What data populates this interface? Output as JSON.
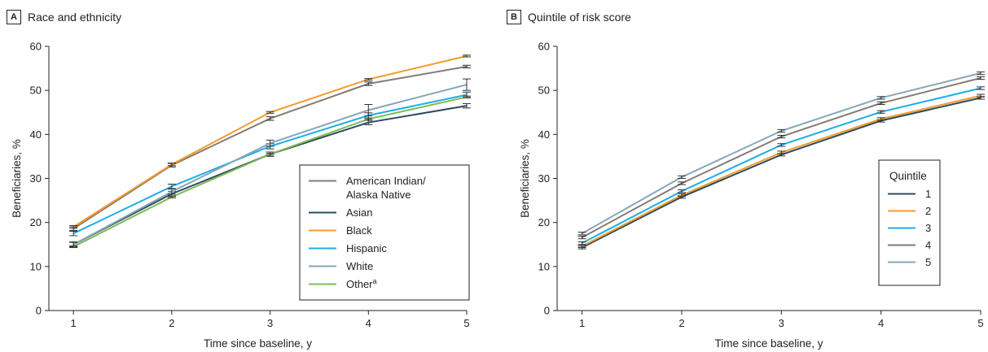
{
  "chart_data": [
    {
      "type": "line",
      "panel_label": "A",
      "title": "Race and ethnicity",
      "xlabel": "Time since baseline, y",
      "ylabel": "Beneficiaries, %",
      "x": [
        1,
        2,
        3,
        4,
        5
      ],
      "xlim": [
        0.75,
        5
      ],
      "ylim": [
        0,
        60
      ],
      "yticks": [
        0,
        10,
        20,
        30,
        40,
        50,
        60
      ],
      "legend_position": "center-right",
      "series": [
        {
          "name": "American Indian/ Alaska Native",
          "color": "#857b74",
          "values": [
            18.6,
            33.0,
            43.6,
            51.5,
            55.4
          ],
          "error": [
            0.4,
            0.4,
            0.4,
            0.4,
            0.3
          ]
        },
        {
          "name": "Asian",
          "color": "#2d4b5f",
          "values": [
            15.0,
            26.5,
            35.5,
            42.7,
            46.5
          ],
          "error": [
            0.6,
            0.6,
            0.5,
            0.5,
            0.5
          ]
        },
        {
          "name": "Black",
          "color": "#f39b2b",
          "values": [
            19.0,
            33.2,
            45.0,
            52.5,
            57.8
          ],
          "error": [
            0.3,
            0.3,
            0.2,
            0.2,
            0.2
          ]
        },
        {
          "name": "Hispanic",
          "color": "#1eaee8",
          "values": [
            17.5,
            28.2,
            37.3,
            44.3,
            49.0
          ],
          "error": [
            0.5,
            0.5,
            0.6,
            0.6,
            0.6
          ]
        },
        {
          "name": "White",
          "color": "#86a6ba",
          "values": [
            15.0,
            27.0,
            38.0,
            45.5,
            51.3
          ],
          "error": [
            0.5,
            0.6,
            0.7,
            1.3,
            1.3
          ]
        },
        {
          "name": "Other",
          "name_superscript": "a",
          "color": "#7dbb57",
          "values": [
            14.5,
            25.8,
            35.5,
            43.5,
            48.5
          ],
          "error": [
            0.2,
            0.2,
            0.2,
            0.2,
            0.2
          ]
        }
      ]
    },
    {
      "type": "line",
      "panel_label": "B",
      "title": "Quintile of risk score",
      "xlabel": "Time since baseline, y",
      "ylabel": "Beneficiaries, %",
      "x": [
        1,
        2,
        3,
        4,
        5
      ],
      "xlim": [
        0.75,
        5
      ],
      "ylim": [
        0,
        60
      ],
      "yticks": [
        0,
        10,
        20,
        30,
        40,
        50,
        60
      ],
      "legend_title": "Quintile",
      "legend_position": "center-right",
      "series": [
        {
          "name": "1",
          "color": "#2d4b5f",
          "values": [
            14.3,
            25.8,
            35.4,
            43.1,
            48.3
          ],
          "error": [
            0.3,
            0.3,
            0.3,
            0.3,
            0.3
          ]
        },
        {
          "name": "2",
          "color": "#f39b2b",
          "values": [
            14.6,
            26.2,
            35.9,
            43.5,
            48.8
          ],
          "error": [
            0.3,
            0.3,
            0.3,
            0.3,
            0.3
          ]
        },
        {
          "name": "3",
          "color": "#1eaee8",
          "values": [
            15.3,
            27.1,
            37.6,
            45.1,
            50.5
          ],
          "error": [
            0.3,
            0.3,
            0.3,
            0.3,
            0.3
          ]
        },
        {
          "name": "4",
          "color": "#857b74",
          "values": [
            16.6,
            28.9,
            39.5,
            47.1,
            52.8
          ],
          "error": [
            0.3,
            0.3,
            0.3,
            0.3,
            0.3
          ]
        },
        {
          "name": "5",
          "color": "#86a6ba",
          "values": [
            17.5,
            30.3,
            40.8,
            48.3,
            53.9
          ],
          "error": [
            0.3,
            0.3,
            0.3,
            0.3,
            0.3
          ]
        }
      ]
    }
  ]
}
